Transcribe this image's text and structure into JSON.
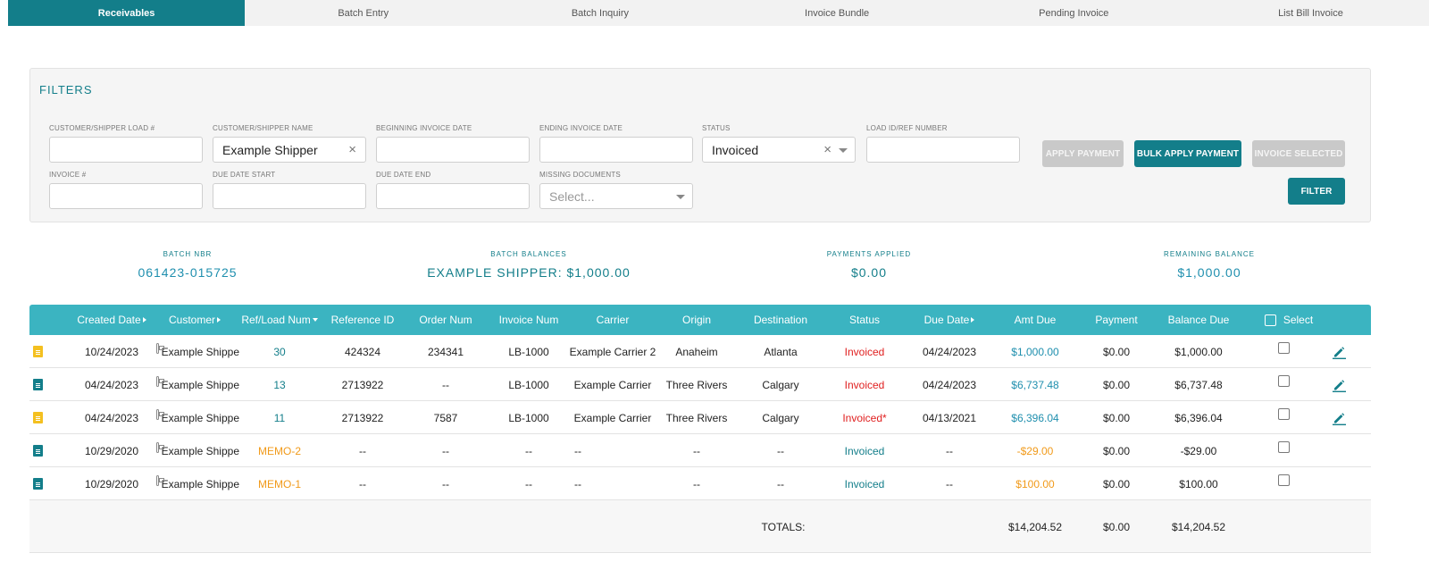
{
  "tabs": [
    {
      "label": "Receivables",
      "active": true
    },
    {
      "label": "Batch Entry",
      "active": false
    },
    {
      "label": "Batch Inquiry",
      "active": false
    },
    {
      "label": "Invoice Bundle",
      "active": false
    },
    {
      "label": "Pending Invoice",
      "active": false
    },
    {
      "label": "List Bill Invoice",
      "active": false
    }
  ],
  "filters": {
    "title": "FILTERS",
    "customer_load_label": "CUSTOMER/SHIPPER LOAD #",
    "customer_load_value": "",
    "customer_name_label": "CUSTOMER/SHIPPER NAME",
    "customer_name_value": "Example Shipper",
    "begin_date_label": "BEGINNING INVOICE DATE",
    "begin_date_value": "",
    "end_date_label": "ENDING INVOICE DATE",
    "end_date_value": "",
    "status_label": "STATUS",
    "status_value": "Invoiced",
    "load_id_label": "LOAD ID/REF NUMBER",
    "load_id_value": "",
    "invoice_label": "INVOICE #",
    "invoice_value": "",
    "due_start_label": "DUE DATE START",
    "due_start_value": "",
    "due_end_label": "DUE DATE END",
    "due_end_value": "",
    "missing_docs_label": "MISSING DOCUMENTS",
    "missing_docs_placeholder": "Select...",
    "clear_glyph": "×"
  },
  "buttons": {
    "apply_payment": "APPLY PAYMENT",
    "bulk_apply_payment": "BULK APPLY PAYMENT",
    "invoice_selected": "INVOICE SELECTED",
    "filter": "FILTER"
  },
  "summary": {
    "batch_nbr_label": "BATCH NBR",
    "batch_nbr_value": "061423-015725",
    "batch_balances_label": "BATCH BALANCES",
    "batch_balances_value": "EXAMPLE SHIPPER: $1,000.00",
    "payments_applied_label": "PAYMENTS APPLIED",
    "payments_applied_value": "$0.00",
    "remaining_balance_label": "REMAINING BALANCE",
    "remaining_balance_value": "$1,000.00"
  },
  "table": {
    "headers": {
      "created_date": "Created Date",
      "customer": "Customer",
      "ref_load_num": "Ref/Load Num",
      "reference_id": "Reference ID",
      "order_num": "Order Num",
      "invoice_num": "Invoice Num",
      "carrier": "Carrier",
      "origin": "Origin",
      "destination": "Destination",
      "status": "Status",
      "due_date": "Due Date",
      "amt_due": "Amt Due",
      "payment": "Payment",
      "balance_due": "Balance Due",
      "select": "Select"
    },
    "rows": [
      {
        "doc_color": "yellow",
        "created": "10/24/2023",
        "customer": "Example Shippe",
        "ref": "30",
        "ref_color": "teal",
        "reference_id": "424324",
        "order_num": "234341",
        "invoice_num": "LB-1000",
        "carrier": "Example Carrier 2",
        "origin": "Anaheim",
        "destination": "Atlanta",
        "status": "Invoiced",
        "status_color": "red",
        "due_date": "04/24/2023",
        "amt_due": "$1,000.00",
        "amt_color": "blue",
        "payment": "$0.00",
        "balance": "$1,000.00",
        "editable": true
      },
      {
        "doc_color": "teal",
        "created": "04/24/2023",
        "customer": "Example Shippe",
        "ref": "13",
        "ref_color": "teal",
        "reference_id": "2713922",
        "order_num": "--",
        "invoice_num": "LB-1000",
        "carrier": "Example Carrier",
        "origin": "Three Rivers",
        "destination": "Calgary",
        "status": "Invoiced",
        "status_color": "red",
        "due_date": "04/24/2023",
        "amt_due": "$6,737.48",
        "amt_color": "blue",
        "payment": "$0.00",
        "balance": "$6,737.48",
        "editable": true
      },
      {
        "doc_color": "yellow",
        "created": "04/24/2023",
        "customer": "Example Shippe",
        "ref": "11",
        "ref_color": "teal",
        "reference_id": "2713922",
        "order_num": "7587",
        "invoice_num": "LB-1000",
        "carrier": "Example Carrier",
        "origin": "Three Rivers",
        "destination": "Calgary",
        "status": "Invoiced*",
        "status_color": "red",
        "due_date": "04/13/2021",
        "amt_due": "$6,396.04",
        "amt_color": "blue",
        "payment": "$0.00",
        "balance": "$6,396.04",
        "editable": true
      },
      {
        "doc_color": "teal",
        "created": "10/29/2020",
        "customer": "Example Shippe",
        "ref": "MEMO-2",
        "ref_color": "orange",
        "reference_id": "--",
        "order_num": "--",
        "invoice_num": "--",
        "carrier": "--",
        "origin": "--",
        "destination": "--",
        "status": "Invoiced",
        "status_color": "teal",
        "due_date": "--",
        "amt_due": "-$29.00",
        "amt_color": "orange",
        "payment": "$0.00",
        "balance": "-$29.00",
        "editable": false
      },
      {
        "doc_color": "teal",
        "created": "10/29/2020",
        "customer": "Example Shippe",
        "ref": "MEMO-1",
        "ref_color": "orange",
        "reference_id": "--",
        "order_num": "--",
        "invoice_num": "--",
        "carrier": "--",
        "origin": "--",
        "destination": "--",
        "status": "Invoiced",
        "status_color": "teal",
        "due_date": "--",
        "amt_due": "$100.00",
        "amt_color": "orange",
        "payment": "$0.00",
        "balance": "$100.00",
        "editable": false
      }
    ],
    "totals": {
      "label": "TOTALS:",
      "amt_due": "$14,204.52",
      "payment": "$0.00",
      "balance": "$14,204.52"
    }
  },
  "colors": {
    "brand": "#137e8a",
    "header_bg": "#3bb4c1",
    "link_blue": "#1f8fae",
    "status_red": "#e02020",
    "memo_orange": "#f19a1a",
    "doc_yellow": "#f4c020"
  },
  "icons": {
    "doc": "document-icon",
    "customer": "customer-card-icon",
    "edit": "pencil-icon",
    "checkbox": "checkbox-icon"
  }
}
